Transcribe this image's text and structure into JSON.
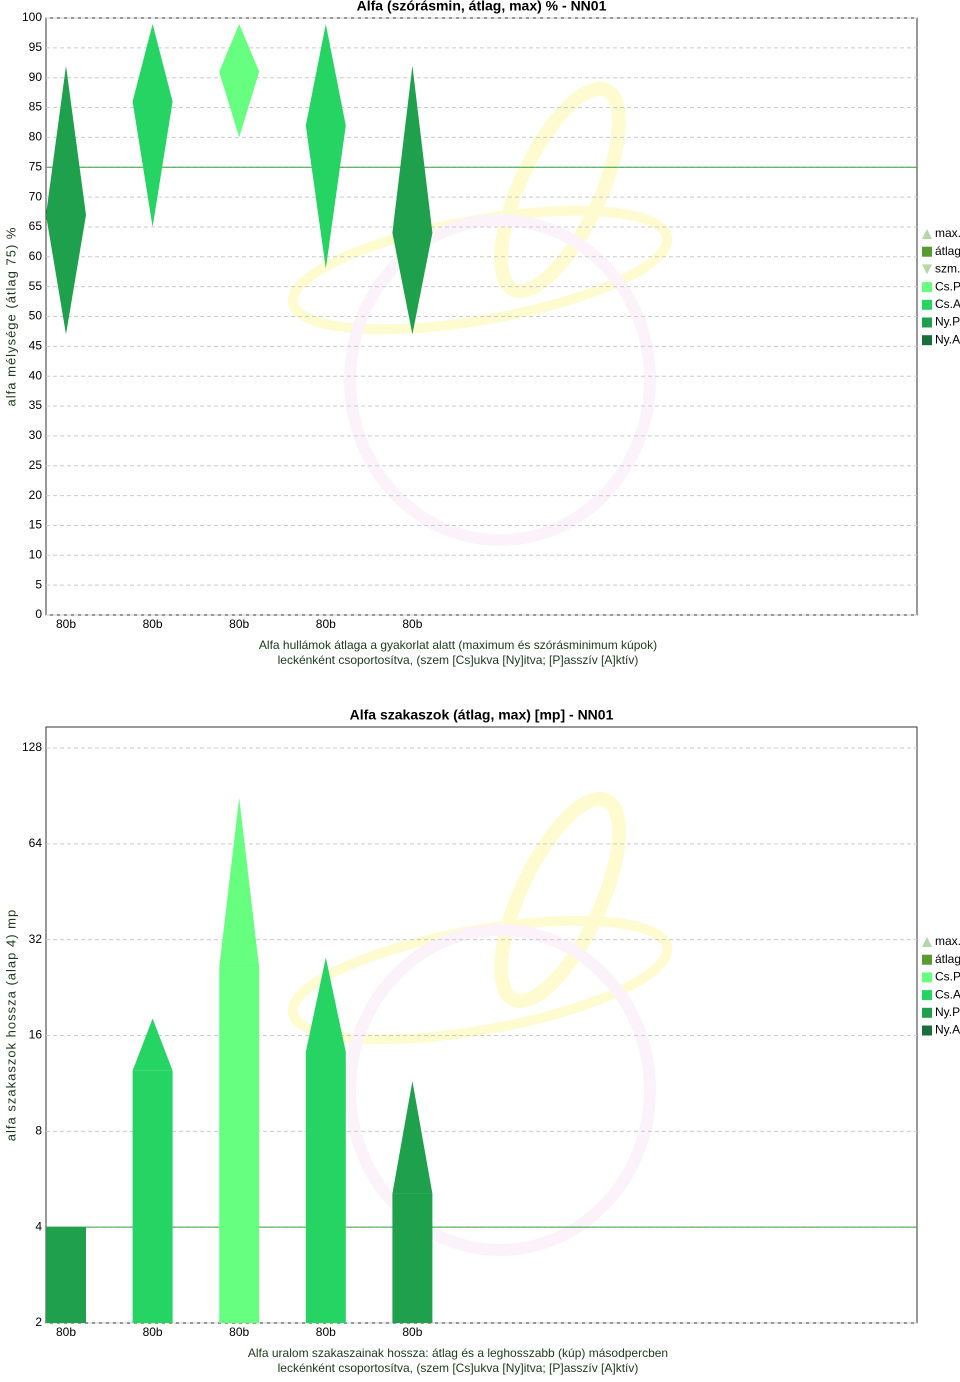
{
  "chart_data": [
    {
      "type": "diamond",
      "title": "Alfa (szórásmin, átlag, max) % - NN01",
      "ylabel": "alfa mélysége (átlag 75) %",
      "xlabel": [
        "Alfa hullámok átlaga a gyakorlat alatt (maximum és szórásminimum kúpok)",
        "leckénként csoportosítva, (szem [Cs]ukva [Ny]itva; [P]asszív [A]ktív)"
      ],
      "categories": [
        "80b",
        "80b",
        "80b",
        "80b",
        "80b"
      ],
      "bar_colors": [
        "#1fa04c",
        "#26d464",
        "#66ff80",
        "#26d464",
        "#1fa04c"
      ],
      "series": [
        {
          "name": "max.",
          "color": "#b4d8a8",
          "marker": "triangle-up",
          "values": [
            92,
            99,
            99,
            99,
            92
          ]
        },
        {
          "name": "átlag",
          "color": "#5a9a30",
          "marker": "square",
          "values": [
            67,
            86,
            91,
            82,
            64
          ]
        },
        {
          "name": "szm.",
          "color": "#b4d8a8",
          "marker": "triangle-down",
          "values": [
            47,
            65,
            80,
            58,
            47
          ]
        }
      ],
      "groups": [
        {
          "name": "Cs.P",
          "color": "#66ff80"
        },
        {
          "name": "Cs.A",
          "color": "#26d464"
        },
        {
          "name": "Ny.P",
          "color": "#1fa04c"
        },
        {
          "name": "Ny.A",
          "color": "#1a6e3c"
        }
      ],
      "reference_line": 75,
      "ylim": [
        0,
        100
      ],
      "yticks": [
        0,
        5,
        10,
        15,
        20,
        25,
        30,
        35,
        40,
        45,
        50,
        55,
        60,
        65,
        70,
        75,
        80,
        85,
        90,
        95,
        100
      ],
      "log_scale": false,
      "grid": true,
      "legend": "right"
    },
    {
      "type": "bar",
      "title": "Alfa szakaszok (átlag, max) [mp] - NN01",
      "ylabel": "alfa szakaszok hossza (alap 4) mp",
      "xlabel": [
        "Alfa uralom szakaszainak hossza: átlag és a leghosszabb (kúp) másodpercben",
        "leckénként csoportosítva, (szem [Cs]ukva [Ny]itva; [P]asszív [A]ktív)"
      ],
      "categories": [
        "80b",
        "80b",
        "80b",
        "80b",
        "80b"
      ],
      "bar_colors": [
        "#1fa04c",
        "#26d464",
        "#66ff80",
        "#26d464",
        "#1fa04c"
      ],
      "series": [
        {
          "name": "max.",
          "color": "#b4d8a8",
          "marker": "triangle-up",
          "values": [
            4,
            18.1,
            89.2,
            28.1,
            11.5
          ]
        },
        {
          "name": "átlag",
          "color": "#5a9a30",
          "marker": "square",
          "values": [
            4,
            12.4,
            26.1,
            14.2,
            5.1
          ]
        }
      ],
      "groups": [
        {
          "name": "Cs.P",
          "color": "#66ff80"
        },
        {
          "name": "Cs.A",
          "color": "#26d464"
        },
        {
          "name": "Ny.P",
          "color": "#1fa04c"
        },
        {
          "name": "Ny.A",
          "color": "#1a6e3c"
        }
      ],
      "reference_line": 4,
      "ylim": [
        2,
        149
      ],
      "yticks": [
        2,
        4,
        8,
        16,
        32,
        64,
        128
      ],
      "log_scale": true,
      "grid": true,
      "legend": "right"
    }
  ]
}
